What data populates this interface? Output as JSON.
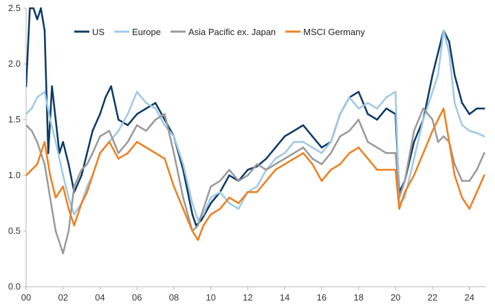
{
  "chart_data": {
    "type": "line",
    "title": "",
    "xlabel": "",
    "ylabel": "",
    "xlim": [
      2000,
      2024.9
    ],
    "ylim": [
      0,
      2.5
    ],
    "y_ticks": [
      0.0,
      0.5,
      1.0,
      1.5,
      2.0,
      2.5
    ],
    "y_tick_labels": [
      "0.0",
      "0.5",
      "1.0",
      "1.5",
      "2.0",
      "2.5"
    ],
    "x_ticks": [
      2000,
      2002,
      2004,
      2006,
      2008,
      2010,
      2012,
      2014,
      2016,
      2018,
      2020,
      2022,
      2024
    ],
    "x_tick_labels": [
      "00",
      "02",
      "04",
      "06",
      "08",
      "10",
      "12",
      "14",
      "16",
      "18",
      "20",
      "22",
      "24"
    ],
    "grid": false,
    "legend_position": "top",
    "legend": [
      "US",
      "Europe",
      "Asia Pacific ex. Japan",
      "MSCI Germany"
    ],
    "series": [
      {
        "name": "US",
        "color": "#0d3a66",
        "x": [
          2000.0,
          2000.2,
          2000.4,
          2000.6,
          2000.8,
          2001.0,
          2001.2,
          2001.4,
          2001.6,
          2001.8,
          2002.0,
          2002.3,
          2002.6,
          2003.0,
          2003.3,
          2003.6,
          2004.0,
          2004.3,
          2004.6,
          2005.0,
          2005.5,
          2006.0,
          2006.5,
          2007.0,
          2007.5,
          2008.0,
          2008.5,
          2009.0,
          2009.2,
          2009.5,
          2010.0,
          2010.5,
          2011.0,
          2011.5,
          2012.0,
          2012.5,
          2013.0,
          2013.5,
          2014.0,
          2014.5,
          2015.0,
          2015.5,
          2016.0,
          2016.5,
          2017.0,
          2017.5,
          2018.0,
          2018.5,
          2019.0,
          2019.5,
          2020.0,
          2020.2,
          2020.5,
          2021.0,
          2021.5,
          2022.0,
          2022.3,
          2022.6,
          2022.9,
          2023.2,
          2023.6,
          2024.0,
          2024.4,
          2024.8
        ],
        "y": [
          1.8,
          2.5,
          2.5,
          2.4,
          2.5,
          2.3,
          1.2,
          1.8,
          1.5,
          1.2,
          1.3,
          1.1,
          0.85,
          1.0,
          1.2,
          1.4,
          1.55,
          1.7,
          1.8,
          1.5,
          1.45,
          1.55,
          1.6,
          1.65,
          1.5,
          1.35,
          1.05,
          0.65,
          0.55,
          0.6,
          0.75,
          0.85,
          1.0,
          0.95,
          1.05,
          1.08,
          1.15,
          1.25,
          1.35,
          1.4,
          1.45,
          1.35,
          1.25,
          1.3,
          1.55,
          1.7,
          1.75,
          1.55,
          1.5,
          1.6,
          1.55,
          0.85,
          0.95,
          1.3,
          1.5,
          1.9,
          2.1,
          2.3,
          2.2,
          1.9,
          1.65,
          1.55,
          1.6,
          1.6
        ]
      },
      {
        "name": "Europe",
        "color": "#9fc9e9",
        "x": [
          2000.0,
          2000.3,
          2000.6,
          2001.0,
          2001.3,
          2001.6,
          2002.0,
          2002.3,
          2002.6,
          2003.0,
          2003.3,
          2003.6,
          2004.0,
          2004.5,
          2005.0,
          2005.5,
          2006.0,
          2006.5,
          2007.0,
          2007.5,
          2008.0,
          2008.5,
          2009.0,
          2009.3,
          2009.6,
          2010.0,
          2010.5,
          2011.0,
          2011.5,
          2012.0,
          2012.5,
          2013.0,
          2013.5,
          2014.0,
          2014.5,
          2015.0,
          2015.5,
          2016.0,
          2016.5,
          2017.0,
          2017.5,
          2018.0,
          2018.5,
          2019.0,
          2019.5,
          2020.0,
          2020.2,
          2020.5,
          2021.0,
          2021.5,
          2022.0,
          2022.3,
          2022.6,
          2022.9,
          2023.2,
          2023.6,
          2024.0,
          2024.4,
          2024.8
        ],
        "y": [
          1.55,
          1.6,
          1.7,
          1.75,
          1.5,
          1.3,
          1.0,
          0.8,
          0.65,
          0.75,
          0.9,
          1.0,
          1.2,
          1.3,
          1.4,
          1.55,
          1.75,
          1.65,
          1.6,
          1.45,
          1.35,
          1.1,
          0.75,
          0.6,
          0.65,
          0.8,
          0.85,
          0.75,
          0.7,
          0.85,
          0.9,
          1.05,
          1.15,
          1.2,
          1.3,
          1.3,
          1.25,
          1.2,
          1.3,
          1.55,
          1.7,
          1.6,
          1.65,
          1.6,
          1.7,
          1.75,
          0.75,
          0.8,
          1.15,
          1.5,
          1.75,
          1.9,
          2.3,
          2.1,
          1.65,
          1.45,
          1.4,
          1.38,
          1.35
        ]
      },
      {
        "name": "Asia Pacific ex. Japan",
        "color": "#9a9a9a",
        "x": [
          2000.0,
          2000.3,
          2000.6,
          2001.0,
          2001.3,
          2001.6,
          2002.0,
          2002.3,
          2002.6,
          2003.0,
          2003.3,
          2003.6,
          2004.0,
          2004.5,
          2005.0,
          2005.5,
          2006.0,
          2006.5,
          2007.0,
          2007.5,
          2008.0,
          2008.5,
          2009.0,
          2009.3,
          2009.6,
          2010.0,
          2010.5,
          2011.0,
          2011.5,
          2012.0,
          2012.5,
          2013.0,
          2013.5,
          2014.0,
          2014.5,
          2015.0,
          2015.5,
          2016.0,
          2016.5,
          2017.0,
          2017.5,
          2018.0,
          2018.5,
          2019.0,
          2019.5,
          2020.0,
          2020.2,
          2020.5,
          2021.0,
          2021.5,
          2022.0,
          2022.3,
          2022.6,
          2022.9,
          2023.2,
          2023.6,
          2024.0,
          2024.4,
          2024.8
        ],
        "y": [
          1.45,
          1.4,
          1.3,
          1.1,
          0.8,
          0.5,
          0.3,
          0.5,
          0.9,
          1.05,
          1.1,
          1.2,
          1.35,
          1.4,
          1.2,
          1.3,
          1.45,
          1.4,
          1.5,
          1.55,
          1.2,
          0.8,
          0.5,
          0.55,
          0.7,
          0.9,
          0.95,
          1.05,
          0.95,
          1.0,
          1.1,
          1.05,
          1.1,
          1.15,
          1.2,
          1.25,
          1.15,
          1.1,
          1.2,
          1.35,
          1.4,
          1.5,
          1.3,
          1.25,
          1.2,
          1.2,
          0.8,
          0.95,
          1.4,
          1.6,
          1.5,
          1.3,
          1.35,
          1.3,
          1.1,
          0.95,
          0.95,
          1.05,
          1.2
        ]
      },
      {
        "name": "MSCI Germany",
        "color": "#f07f1f",
        "x": [
          2000.0,
          2000.3,
          2000.6,
          2001.0,
          2001.3,
          2001.6,
          2002.0,
          2002.3,
          2002.6,
          2003.0,
          2003.3,
          2003.6,
          2004.0,
          2004.5,
          2005.0,
          2005.5,
          2006.0,
          2006.5,
          2007.0,
          2007.5,
          2008.0,
          2008.5,
          2009.0,
          2009.3,
          2009.6,
          2010.0,
          2010.5,
          2011.0,
          2011.5,
          2012.0,
          2012.5,
          2013.0,
          2013.5,
          2014.0,
          2014.5,
          2015.0,
          2015.5,
          2016.0,
          2016.5,
          2017.0,
          2017.5,
          2018.0,
          2018.5,
          2019.0,
          2019.5,
          2020.0,
          2020.2,
          2020.5,
          2021.0,
          2021.5,
          2022.0,
          2022.3,
          2022.6,
          2022.9,
          2023.2,
          2023.6,
          2024.0,
          2024.4,
          2024.8
        ],
        "y": [
          1.0,
          1.05,
          1.1,
          1.3,
          1.0,
          0.8,
          0.9,
          0.7,
          0.55,
          0.75,
          0.85,
          1.0,
          1.2,
          1.3,
          1.15,
          1.2,
          1.3,
          1.25,
          1.2,
          1.15,
          0.9,
          0.7,
          0.5,
          0.42,
          0.55,
          0.65,
          0.7,
          0.8,
          0.75,
          0.85,
          0.85,
          0.95,
          1.05,
          1.1,
          1.15,
          1.2,
          1.1,
          0.95,
          1.05,
          1.1,
          1.2,
          1.25,
          1.15,
          1.05,
          1.05,
          1.05,
          0.7,
          0.85,
          1.0,
          1.2,
          1.4,
          1.5,
          1.6,
          1.3,
          1.0,
          0.8,
          0.7,
          0.85,
          1.0
        ]
      }
    ]
  }
}
